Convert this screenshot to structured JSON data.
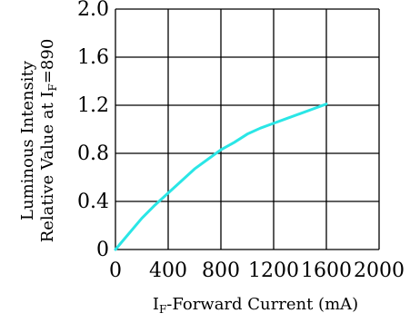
{
  "chart_data": {
    "type": "line",
    "title": "",
    "xlabel": "IF-Forward Current (mA)",
    "xlabel_parts": {
      "prefix": "I",
      "subscript": "F",
      "rest": "-Forward Current (mA)"
    },
    "ylabel_lines": [
      "Luminous Intensity",
      "Relative Value at IF=890"
    ],
    "ylabel_parts": {
      "line1": "Luminous Intensity",
      "line2_prefix": "Relative Value at I",
      "line2_subscript": "F",
      "line2_rest": "=890"
    },
    "xlim": [
      0,
      2000
    ],
    "ylim": [
      0,
      2.0
    ],
    "x_ticks": [
      0,
      400,
      800,
      1200,
      1600,
      2000
    ],
    "x_tick_labels": [
      "0",
      "400",
      "800",
      "1200",
      "1600",
      "2000"
    ],
    "y_ticks": [
      0,
      0.4,
      0.8,
      1.2,
      1.6,
      2.0
    ],
    "y_tick_labels": [
      "0",
      "0.4",
      "0.8",
      "1.2",
      "1.6",
      "2.0"
    ],
    "grid": true,
    "line_color": "#2ae6e6",
    "grid_color": "#000000",
    "series": [
      {
        "x": [
          0,
          100,
          200,
          300,
          400,
          500,
          600,
          700,
          800,
          900,
          1000,
          1100,
          1200,
          1300,
          1400,
          1500,
          1600
        ],
        "y": [
          0,
          0.13,
          0.26,
          0.37,
          0.47,
          0.57,
          0.67,
          0.75,
          0.83,
          0.89,
          0.96,
          1.01,
          1.05,
          1.09,
          1.13,
          1.17,
          1.21
        ]
      }
    ]
  }
}
